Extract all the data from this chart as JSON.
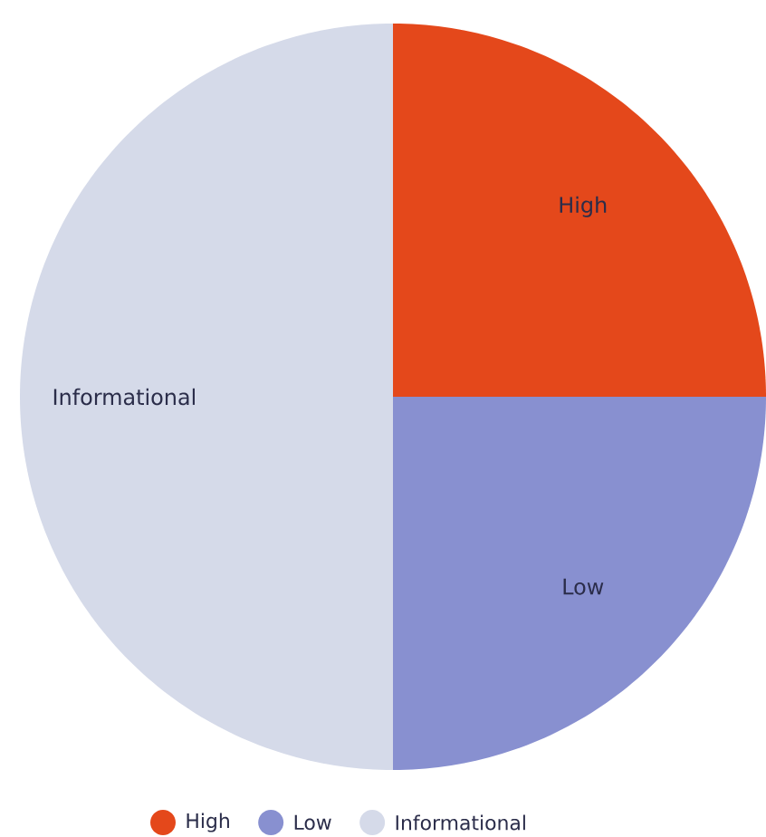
{
  "chart_data": {
    "type": "pie",
    "categories": [
      "High",
      "Low",
      "Informational"
    ],
    "values": [
      25,
      25,
      50
    ],
    "colors": [
      "#e4481b",
      "#8890d0",
      "#d5dae9"
    ],
    "data_labels": false,
    "legend": "bottom"
  }
}
